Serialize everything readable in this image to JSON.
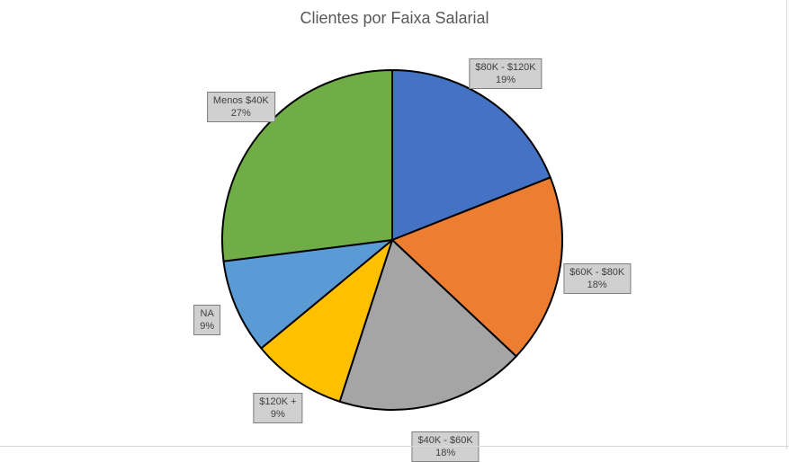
{
  "chart_data": {
    "type": "pie",
    "title": "Clientes por Faixa Salarial",
    "start_angle_deg": 0,
    "slices": [
      {
        "label": "$80K - $120K",
        "value": 19,
        "display": "19%",
        "color": "#4472C4"
      },
      {
        "label": "$60K - $80K",
        "value": 18,
        "display": "18%",
        "color": "#ED7D31"
      },
      {
        "label": "$40K - $60K",
        "value": 18,
        "display": "18%",
        "color": "#A5A5A5"
      },
      {
        "label": "$120K +",
        "value": 9,
        "display": "9%",
        "color": "#FFC000"
      },
      {
        "label": "NA",
        "value": 9,
        "display": "9%",
        "color": "#5B9BD5"
      },
      {
        "label": "Menos $40K",
        "value": 27,
        "display": "27%",
        "color": "#70AD47"
      }
    ]
  }
}
